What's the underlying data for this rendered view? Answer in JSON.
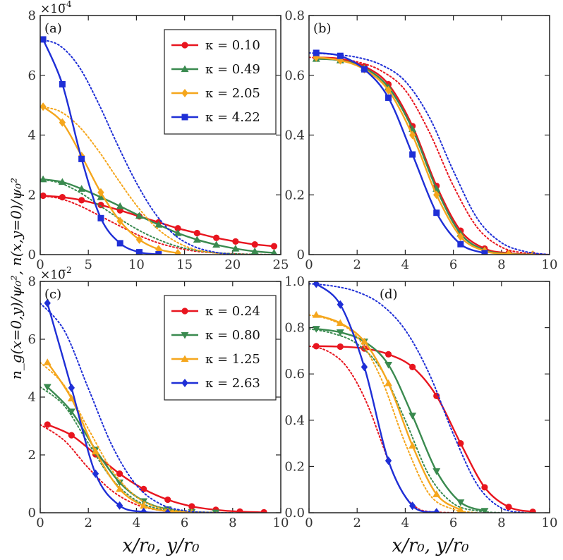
{
  "figure": {
    "ylabel": "n_g(x=0,y)/ψ₀², n(x,y=0)/ψ₀²",
    "xlabel": "x/r₀, y/r₀",
    "colors": {
      "red": "#e8151f",
      "green": "#3a8a4f",
      "orange": "#f5a61c",
      "blue": "#1f2fd6"
    }
  },
  "chart_data": [
    {
      "type": "line",
      "panel": "(a)",
      "xlim": [
        0,
        25
      ],
      "ylim": [
        0,
        8
      ],
      "y_scale_label": "×10",
      "y_scale_exp": "−4",
      "xticks": [
        0,
        5,
        10,
        15,
        20,
        25
      ],
      "yticks": [
        0,
        2,
        4,
        6,
        8
      ],
      "legend": {
        "placement": "top-right"
      },
      "series": [
        {
          "name": "κ = 0.10",
          "color": "red",
          "marker": "circle",
          "x": [
            0.3,
            2.3,
            4.3,
            6.3,
            8.3,
            10.3,
            12.3,
            14.3,
            16.3,
            18.3,
            20.3,
            22.3,
            24.3
          ],
          "y": [
            1.97,
            1.92,
            1.82,
            1.66,
            1.48,
            1.28,
            1.08,
            0.88,
            0.72,
            0.56,
            0.44,
            0.34,
            0.28
          ],
          "dotted_x": [
            0,
            2,
            4,
            6,
            8,
            10,
            12,
            14,
            16,
            18,
            20,
            22,
            24,
            25
          ],
          "dotted_y": [
            1.97,
            1.88,
            1.65,
            1.33,
            1.0,
            0.68,
            0.42,
            0.24,
            0.12,
            0.06,
            0.03,
            0.01,
            0.0,
            0.0
          ]
        },
        {
          "name": "κ = 0.49",
          "color": "green",
          "marker": "triangle",
          "x": [
            0.3,
            2.3,
            4.3,
            6.3,
            8.3,
            10.3,
            12.3,
            14.3,
            16.3,
            18.3,
            20.3,
            22.3,
            24.3
          ],
          "y": [
            2.52,
            2.43,
            2.2,
            1.92,
            1.62,
            1.3,
            1.0,
            0.72,
            0.5,
            0.33,
            0.2,
            0.11,
            0.06
          ],
          "dotted_x": [
            0,
            2,
            4,
            6,
            8,
            10,
            12,
            14,
            16,
            18,
            20,
            22,
            24,
            25
          ],
          "dotted_y": [
            2.52,
            2.4,
            2.1,
            1.68,
            1.25,
            0.86,
            0.54,
            0.3,
            0.15,
            0.07,
            0.03,
            0.01,
            0.0,
            0.0
          ]
        },
        {
          "name": "κ = 2.05",
          "color": "orange",
          "marker": "diamond",
          "x": [
            0.3,
            2.3,
            4.3,
            6.3,
            8.3,
            10.3,
            12.3,
            14.3
          ],
          "y": [
            4.95,
            4.42,
            3.3,
            2.08,
            1.12,
            0.5,
            0.18,
            0.05
          ],
          "dotted_x": [
            0,
            2,
            4,
            6,
            8,
            10,
            12,
            14,
            16,
            18,
            20
          ],
          "dotted_y": [
            4.95,
            4.8,
            4.3,
            3.5,
            2.55,
            1.65,
            0.92,
            0.45,
            0.18,
            0.06,
            0.0
          ]
        },
        {
          "name": "κ = 4.22",
          "color": "blue",
          "marker": "square",
          "x": [
            0.3,
            2.3,
            4.3,
            6.3,
            8.3,
            10.3,
            12.3
          ],
          "y": [
            7.2,
            5.7,
            3.2,
            1.22,
            0.38,
            0.08,
            0.01
          ],
          "dotted_x": [
            0,
            2,
            4,
            6,
            8,
            10,
            12,
            14,
            16,
            18,
            20
          ],
          "dotted_y": [
            7.2,
            7.0,
            6.3,
            5.1,
            3.7,
            2.4,
            1.35,
            0.65,
            0.27,
            0.09,
            0.0
          ]
        }
      ]
    },
    {
      "type": "line",
      "panel": "(b)",
      "xlim": [
        0,
        10
      ],
      "ylim": [
        0,
        0.8
      ],
      "xticks": [
        0,
        2,
        4,
        6,
        8,
        10
      ],
      "yticks": [
        0,
        0.2,
        0.4,
        0.6,
        0.8
      ],
      "ytick_labels": [
        "0",
        "0.2",
        "0.4",
        "0.6",
        "0.8"
      ],
      "series": [
        {
          "color": "red",
          "marker": "circle",
          "x": [
            0.3,
            1.3,
            2.3,
            3.3,
            4.3,
            5.3,
            6.3,
            7.3,
            8.3,
            9.3
          ],
          "y": [
            0.66,
            0.655,
            0.63,
            0.57,
            0.43,
            0.23,
            0.08,
            0.02,
            0.005,
            0.0
          ],
          "dotted_x": [
            0,
            1,
            2,
            3,
            4,
            5,
            6,
            7,
            8,
            9,
            10
          ],
          "dotted_y": [
            0.66,
            0.655,
            0.645,
            0.615,
            0.55,
            0.41,
            0.23,
            0.09,
            0.025,
            0.005,
            0.0
          ]
        },
        {
          "color": "green",
          "marker": "triangle",
          "x": [
            0.3,
            1.3,
            2.3,
            3.3,
            4.3,
            5.3,
            6.3,
            7.3,
            8.3,
            9.3
          ],
          "y": [
            0.655,
            0.65,
            0.625,
            0.56,
            0.42,
            0.22,
            0.07,
            0.015,
            0.003,
            0.0
          ]
        },
        {
          "color": "orange",
          "marker": "diamond",
          "x": [
            0.3,
            1.3,
            2.3,
            3.3,
            4.3,
            5.3,
            6.3,
            7.3,
            8.3,
            9.3
          ],
          "y": [
            0.66,
            0.65,
            0.62,
            0.55,
            0.4,
            0.2,
            0.06,
            0.012,
            0.002,
            0.0
          ]
        },
        {
          "color": "blue",
          "marker": "square",
          "x": [
            0.3,
            1.3,
            2.3,
            3.3,
            4.3,
            5.3,
            6.3,
            7.3
          ],
          "y": [
            0.675,
            0.665,
            0.62,
            0.525,
            0.335,
            0.14,
            0.035,
            0.005
          ],
          "dotted_x": [
            0,
            1,
            2,
            3,
            4,
            5,
            6,
            7,
            8,
            9,
            10
          ],
          "dotted_y": [
            0.675,
            0.67,
            0.66,
            0.635,
            0.58,
            0.46,
            0.28,
            0.12,
            0.04,
            0.01,
            0.0
          ]
        }
      ]
    },
    {
      "type": "line",
      "panel": "(c)",
      "xlim": [
        0,
        10
      ],
      "ylim": [
        0,
        8
      ],
      "y_scale_label": "×10",
      "y_scale_exp": "−2",
      "xticks": [
        0,
        2,
        4,
        6,
        8,
        10
      ],
      "yticks": [
        0,
        2,
        4,
        6,
        8
      ],
      "legend": {
        "placement": "top-right"
      },
      "series": [
        {
          "name": "κ = 0.24",
          "color": "red",
          "marker": "circle",
          "x": [
            0.3,
            1.3,
            2.3,
            3.3,
            4.3,
            5.3,
            6.3,
            7.3,
            8.3,
            9.3
          ],
          "y": [
            3.05,
            2.68,
            2.02,
            1.35,
            0.82,
            0.45,
            0.22,
            0.1,
            0.04,
            0.015
          ],
          "dotted_x": [
            0,
            1,
            2,
            3,
            4,
            5,
            6,
            7,
            8
          ],
          "dotted_y": [
            3.05,
            2.5,
            1.55,
            0.75,
            0.28,
            0.08,
            0.02,
            0.005,
            0.0
          ]
        },
        {
          "name": "κ = 0.80",
          "color": "green",
          "marker": "triangle_down",
          "x": [
            0.3,
            1.3,
            2.3,
            3.3,
            4.3,
            5.3,
            6.3,
            7.3
          ],
          "y": [
            4.35,
            3.5,
            2.18,
            1.05,
            0.4,
            0.12,
            0.03,
            0.006
          ],
          "dotted_x": [
            0,
            1,
            2,
            3,
            4,
            5,
            6,
            7,
            8
          ],
          "dotted_y": [
            4.35,
            3.7,
            2.4,
            1.15,
            0.42,
            0.12,
            0.03,
            0.005,
            0.0
          ]
        },
        {
          "name": "κ = 1.25",
          "color": "orange",
          "marker": "triangle",
          "x": [
            0.3,
            1.3,
            2.3,
            3.3,
            4.3,
            5.3,
            6.3
          ],
          "y": [
            5.2,
            3.95,
            2.12,
            0.82,
            0.24,
            0.05,
            0.01
          ],
          "dotted_x": [
            0,
            1,
            2,
            3,
            4,
            5,
            6,
            7,
            8
          ],
          "dotted_y": [
            5.2,
            4.4,
            2.9,
            1.45,
            0.55,
            0.16,
            0.04,
            0.01,
            0.0
          ]
        },
        {
          "name": "κ = 2.63",
          "color": "blue",
          "marker": "diamond",
          "x": [
            0.3,
            1.3,
            2.3,
            3.3,
            4.3,
            5.3
          ],
          "y": [
            7.25,
            4.32,
            1.35,
            0.25,
            0.03,
            0.0
          ],
          "dotted_x": [
            0,
            1,
            2,
            3,
            4,
            5,
            6,
            7,
            8
          ],
          "dotted_y": [
            7.25,
            6.3,
            4.3,
            2.3,
            0.95,
            0.3,
            0.07,
            0.01,
            0.0
          ]
        }
      ]
    },
    {
      "type": "line",
      "panel": "(d)",
      "xlim": [
        0,
        10
      ],
      "ylim": [
        0,
        1.0
      ],
      "xticks": [
        0,
        2,
        4,
        6,
        8,
        10
      ],
      "yticks": [
        0,
        0.2,
        0.4,
        0.6,
        0.8,
        1.0
      ],
      "ytick_labels": [
        "0.0",
        "0.2",
        "0.4",
        "0.6",
        "0.8",
        "1.0"
      ],
      "series": [
        {
          "color": "red",
          "marker": "circle",
          "x": [
            0.3,
            1.3,
            2.3,
            3.3,
            4.3,
            5.3,
            6.3,
            7.3,
            8.3,
            9.3
          ],
          "y": [
            0.72,
            0.718,
            0.71,
            0.685,
            0.63,
            0.505,
            0.3,
            0.11,
            0.025,
            0.004
          ],
          "dotted_x": [
            0,
            0.5,
            1,
            1.5,
            2,
            2.5,
            3,
            3.5,
            4,
            4.5,
            5,
            6
          ],
          "dotted_y": [
            0.72,
            0.71,
            0.685,
            0.64,
            0.56,
            0.45,
            0.31,
            0.17,
            0.07,
            0.02,
            0.005,
            0.0
          ]
        },
        {
          "color": "green",
          "marker": "triangle_down",
          "x": [
            0.3,
            1.3,
            2.3,
            3.3,
            4.3,
            5.3,
            6.3,
            7.3
          ],
          "y": [
            0.795,
            0.78,
            0.74,
            0.64,
            0.42,
            0.18,
            0.045,
            0.008
          ],
          "dotted_x": [
            0,
            1,
            2,
            3,
            4,
            5,
            6,
            7,
            8
          ],
          "dotted_y": [
            0.795,
            0.775,
            0.73,
            0.62,
            0.4,
            0.16,
            0.04,
            0.008,
            0.0
          ]
        },
        {
          "color": "orange",
          "marker": "triangle",
          "x": [
            0.3,
            1.3,
            2.3,
            3.3,
            4.3,
            5.3,
            6.3
          ],
          "y": [
            0.855,
            0.82,
            0.74,
            0.56,
            0.29,
            0.08,
            0.012
          ],
          "dotted_x": [
            0,
            1,
            2,
            3,
            4,
            5,
            6,
            7
          ],
          "dotted_y": [
            0.855,
            0.83,
            0.76,
            0.58,
            0.3,
            0.08,
            0.015,
            0.0
          ]
        },
        {
          "color": "blue",
          "marker": "diamond",
          "x": [
            0.3,
            1.3,
            2.3,
            3.3,
            4.3,
            5.3
          ],
          "y": [
            0.99,
            0.9,
            0.63,
            0.225,
            0.03,
            0.002
          ],
          "dotted_x": [
            0,
            1,
            2,
            3,
            4,
            5,
            6,
            7,
            8,
            9
          ],
          "dotted_y": [
            0.99,
            0.98,
            0.955,
            0.9,
            0.79,
            0.6,
            0.34,
            0.12,
            0.02,
            0.0
          ]
        }
      ]
    }
  ]
}
